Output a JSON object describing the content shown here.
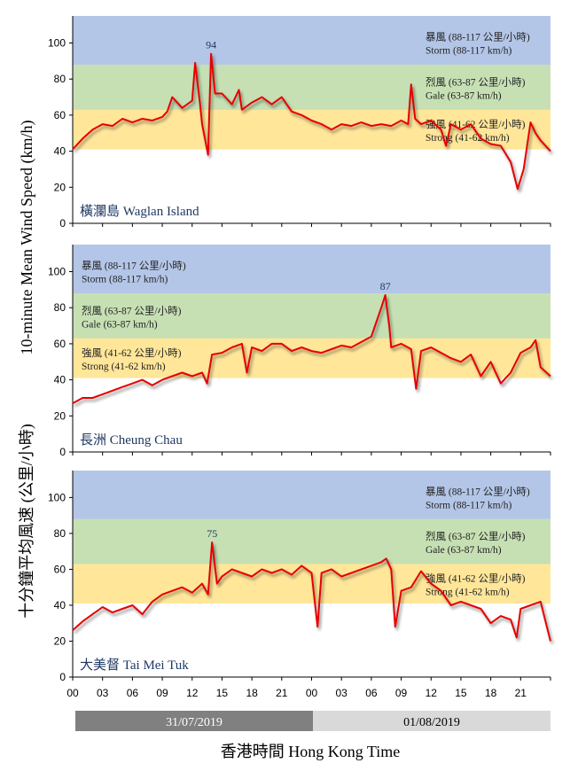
{
  "chart_data": {
    "type": "line",
    "ylabel_en": "10-minute Mean Wind Speed (km/h)",
    "ylabel_zh": "十分鐘平均風速 (公里/小時)",
    "xlabel": "香港時間 Hong Kong Time",
    "x_tick_labels": [
      "00",
      "03",
      "06",
      "09",
      "12",
      "15",
      "18",
      "21",
      "00",
      "03",
      "06",
      "09",
      "12",
      "15",
      "18",
      "21"
    ],
    "y_ticks": [
      0,
      20,
      40,
      60,
      80,
      100
    ],
    "ylim": [
      0,
      115
    ],
    "xlim_hours": [
      0,
      48
    ],
    "dates": [
      "31/07/2019",
      "01/08/2019"
    ],
    "date_colors": {
      "day1_bg": "#808080",
      "day1_fg": "#ffffff",
      "day2_bg": "#d9d9d9",
      "day2_fg": "#000000"
    },
    "bands": [
      {
        "name": "storm",
        "range": [
          88,
          117
        ],
        "color": "#b4c6e7",
        "zh": "暴風 (88-117 公里/小時)",
        "en": "Storm (88-117 km/h)"
      },
      {
        "name": "gale",
        "range": [
          63,
          87
        ],
        "color": "#c6e0b4",
        "zh": "烈風 (63-87 公里/小時)",
        "en": "Gale (63-87 km/h)"
      },
      {
        "name": "strong",
        "range": [
          41,
          62
        ],
        "color": "#ffe699",
        "zh": "強風 (41-62 公里/小時)",
        "en": "Strong (41-62 km/h)"
      }
    ],
    "line_color": "#e60000",
    "panels": [
      {
        "station": "橫瀾島  Waglan Island",
        "peak_label": "94",
        "peak_value": 94,
        "peak_hour": 13.9,
        "band_label_side": "right",
        "series": [
          [
            0,
            41
          ],
          [
            1,
            47
          ],
          [
            2,
            52
          ],
          [
            3,
            55
          ],
          [
            4,
            54
          ],
          [
            5,
            58
          ],
          [
            6,
            56
          ],
          [
            7,
            58
          ],
          [
            8,
            57
          ],
          [
            9,
            59
          ],
          [
            9.5,
            62
          ],
          [
            10,
            70
          ],
          [
            11,
            64
          ],
          [
            12,
            68
          ],
          [
            12.3,
            89
          ],
          [
            12.8,
            66
          ],
          [
            13,
            55
          ],
          [
            13.6,
            38
          ],
          [
            13.9,
            94
          ],
          [
            14.3,
            72
          ],
          [
            15,
            72
          ],
          [
            16,
            66
          ],
          [
            16.7,
            74
          ],
          [
            17,
            63
          ],
          [
            18,
            67
          ],
          [
            19,
            70
          ],
          [
            20,
            66
          ],
          [
            21,
            70
          ],
          [
            22,
            62
          ],
          [
            23,
            60
          ],
          [
            24,
            57
          ],
          [
            25,
            55
          ],
          [
            26,
            52
          ],
          [
            27,
            55
          ],
          [
            28,
            54
          ],
          [
            29,
            56
          ],
          [
            30,
            54
          ],
          [
            31,
            55
          ],
          [
            32,
            54
          ],
          [
            33,
            57
          ],
          [
            33.7,
            55
          ],
          [
            34,
            77
          ],
          [
            34.4,
            58
          ],
          [
            35,
            55
          ],
          [
            36,
            57
          ],
          [
            37,
            52
          ],
          [
            37.5,
            43
          ],
          [
            38,
            55
          ],
          [
            39,
            52
          ],
          [
            40,
            55
          ],
          [
            41,
            47
          ],
          [
            42,
            44
          ],
          [
            43,
            43
          ],
          [
            44,
            34
          ],
          [
            44.7,
            19
          ],
          [
            45.3,
            30
          ],
          [
            46,
            56
          ],
          [
            46.5,
            50
          ],
          [
            47,
            46
          ],
          [
            48,
            40
          ]
        ]
      },
      {
        "station": "長洲 Cheung Chau",
        "peak_label": "87",
        "peak_value": 87,
        "peak_hour": 31.4,
        "band_label_side": "left",
        "series": [
          [
            0,
            27
          ],
          [
            1,
            30
          ],
          [
            2,
            30
          ],
          [
            3,
            32
          ],
          [
            4,
            34
          ],
          [
            5,
            36
          ],
          [
            6,
            38
          ],
          [
            7,
            40
          ],
          [
            8,
            37
          ],
          [
            9,
            40
          ],
          [
            10,
            42
          ],
          [
            11,
            44
          ],
          [
            12,
            42
          ],
          [
            13,
            44
          ],
          [
            13.5,
            38
          ],
          [
            14,
            54
          ],
          [
            15,
            55
          ],
          [
            16,
            58
          ],
          [
            17,
            60
          ],
          [
            17.5,
            44
          ],
          [
            18,
            58
          ],
          [
            19,
            56
          ],
          [
            20,
            60
          ],
          [
            21,
            60
          ],
          [
            22,
            56
          ],
          [
            23,
            58
          ],
          [
            24,
            56
          ],
          [
            25,
            55
          ],
          [
            26,
            57
          ],
          [
            27,
            59
          ],
          [
            28,
            58
          ],
          [
            29,
            61
          ],
          [
            30,
            64
          ],
          [
            30.5,
            72
          ],
          [
            31,
            80
          ],
          [
            31.4,
            87
          ],
          [
            31.8,
            70
          ],
          [
            32,
            58
          ],
          [
            33,
            60
          ],
          [
            34,
            57
          ],
          [
            34.5,
            35
          ],
          [
            35,
            56
          ],
          [
            36,
            58
          ],
          [
            37,
            55
          ],
          [
            38,
            52
          ],
          [
            39,
            50
          ],
          [
            40,
            54
          ],
          [
            41,
            42
          ],
          [
            42,
            50
          ],
          [
            43,
            38
          ],
          [
            44,
            44
          ],
          [
            45,
            55
          ],
          [
            46,
            58
          ],
          [
            46.5,
            62
          ],
          [
            47,
            47
          ],
          [
            48,
            42
          ]
        ]
      },
      {
        "station": "大美督  Tai Mei Tuk",
        "peak_label": "75",
        "peak_value": 75,
        "peak_hour": 14.0,
        "band_label_side": "right",
        "series": [
          [
            0,
            26
          ],
          [
            1,
            31
          ],
          [
            2,
            35
          ],
          [
            3,
            39
          ],
          [
            4,
            36
          ],
          [
            5,
            38
          ],
          [
            6,
            40
          ],
          [
            7,
            35
          ],
          [
            8,
            42
          ],
          [
            9,
            46
          ],
          [
            10,
            48
          ],
          [
            11,
            50
          ],
          [
            12,
            47
          ],
          [
            13,
            52
          ],
          [
            13.6,
            46
          ],
          [
            14,
            75
          ],
          [
            14.5,
            52
          ],
          [
            15,
            56
          ],
          [
            16,
            60
          ],
          [
            17,
            58
          ],
          [
            18,
            56
          ],
          [
            19,
            60
          ],
          [
            20,
            58
          ],
          [
            21,
            60
          ],
          [
            22,
            57
          ],
          [
            23,
            62
          ],
          [
            24,
            58
          ],
          [
            24.6,
            28
          ],
          [
            25,
            58
          ],
          [
            26,
            60
          ],
          [
            27,
            56
          ],
          [
            28,
            58
          ],
          [
            29,
            60
          ],
          [
            30,
            62
          ],
          [
            31,
            64
          ],
          [
            31.5,
            66
          ],
          [
            32,
            60
          ],
          [
            32.4,
            28
          ],
          [
            33,
            48
          ],
          [
            34,
            50
          ],
          [
            35,
            59
          ],
          [
            36,
            52
          ],
          [
            37,
            48
          ],
          [
            38,
            40
          ],
          [
            39,
            42
          ],
          [
            40,
            40
          ],
          [
            41,
            38
          ],
          [
            42,
            30
          ],
          [
            43,
            34
          ],
          [
            44,
            32
          ],
          [
            44.6,
            22
          ],
          [
            45,
            38
          ],
          [
            46,
            40
          ],
          [
            47,
            42
          ],
          [
            48,
            20
          ]
        ]
      }
    ]
  }
}
